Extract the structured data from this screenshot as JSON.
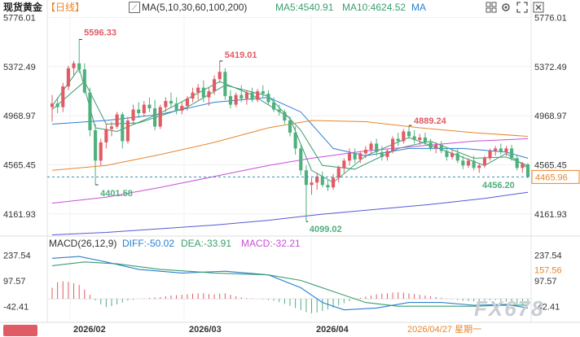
{
  "header": {
    "instrument": "现货黄金",
    "period": "【日线】",
    "ma_label": "MA(5,10,30,60,100,200)",
    "ma5_label": "MA5:4540.91",
    "ma10_label": "MA10:4624.52",
    "ma_tail": "MA"
  },
  "macd_header": {
    "label": "MACD(26,12,9)",
    "diff": "DIFF:-50.02",
    "dea": "DEA:-33.91",
    "macd": "MACD:-32.21"
  },
  "price_axis": {
    "ticks": [
      "5776.01",
      "5372.49",
      "4968.97",
      "4565.45",
      "4161.93"
    ],
    "tick_values": [
      5776.01,
      5372.49,
      4968.97,
      4565.45,
      4161.93
    ],
    "current_label": "4465.96",
    "current_value": 4465.96
  },
  "macd_axis": {
    "ticks": [
      "237.54",
      "97.57",
      "-42.41"
    ],
    "tick_values": [
      237.54,
      97.57,
      -42.41
    ],
    "highlight_label": "157.56",
    "highlight_value": 157.56
  },
  "date_axis": {
    "labels": [
      "2026/02",
      "2026/03",
      "2026/04"
    ],
    "cursor_label": "2026/04/27 星期一"
  },
  "annotations": {
    "high1": "5596.33",
    "high2": "5419.01",
    "mid_high": "4889.24",
    "low1": "4401.58",
    "low2": "4099.02",
    "last_low": "4456.20"
  },
  "watermark": "FX678",
  "colors": {
    "up": "#e15b64",
    "down": "#4fb07e",
    "ma5": "#3a9e6f",
    "ma10": "#3a9e6f",
    "ma30": "#2a7fd0",
    "ma60": "#e8852b",
    "ma100": "#c84fd8",
    "ma200": "#5757d6",
    "diff": "#2a7fd0",
    "dea": "#3a9e6f"
  },
  "chart_data": {
    "type": "candlestick",
    "y_range": [
      3980,
      5800
    ],
    "candles": [
      [
        5040,
        5140,
        4920,
        5070
      ],
      [
        5070,
        5120,
        4990,
        5040
      ],
      [
        5040,
        5240,
        5000,
        5210
      ],
      [
        5210,
        5380,
        5180,
        5360
      ],
      [
        5360,
        5420,
        5300,
        5400
      ],
      [
        5400,
        5596.33,
        5320,
        5350
      ],
      [
        5350,
        5400,
        5150,
        5160
      ],
      [
        5160,
        5200,
        4800,
        4850
      ],
      [
        4850,
        4900,
        4401.58,
        4600
      ],
      [
        4600,
        4780,
        4560,
        4750
      ],
      [
        4750,
        4900,
        4700,
        4860
      ],
      [
        4860,
        4920,
        4800,
        4880
      ],
      [
        4880,
        5000,
        4860,
        4980
      ],
      [
        4980,
        5000,
        4700,
        4760
      ],
      [
        4760,
        4960,
        4740,
        4930
      ],
      [
        4930,
        5060,
        4900,
        5020
      ],
      [
        5020,
        5080,
        4950,
        4990
      ],
      [
        4990,
        5090,
        4960,
        5060
      ],
      [
        5060,
        5120,
        5000,
        5030
      ],
      [
        5030,
        5100,
        4850,
        4880
      ],
      [
        4880,
        5060,
        4860,
        5040
      ],
      [
        5040,
        5120,
        5000,
        5090
      ],
      [
        5090,
        5160,
        5040,
        5070
      ],
      [
        5070,
        5120,
        4980,
        5010
      ],
      [
        5010,
        5080,
        4980,
        5050
      ],
      [
        5050,
        5130,
        5010,
        5110
      ],
      [
        5110,
        5200,
        5080,
        5160
      ],
      [
        5160,
        5230,
        5100,
        5200
      ],
      [
        5200,
        5260,
        5080,
        5120
      ],
      [
        5120,
        5200,
        5050,
        5170
      ],
      [
        5170,
        5300,
        5140,
        5270
      ],
      [
        5270,
        5419.01,
        5240,
        5330
      ],
      [
        5330,
        5360,
        5100,
        5130
      ],
      [
        5130,
        5180,
        5030,
        5060
      ],
      [
        5060,
        5160,
        5040,
        5140
      ],
      [
        5140,
        5220,
        5080,
        5110
      ],
      [
        5110,
        5180,
        5060,
        5160
      ],
      [
        5160,
        5200,
        5080,
        5100
      ],
      [
        5100,
        5190,
        5080,
        5170
      ],
      [
        5170,
        5220,
        5120,
        5150
      ],
      [
        5150,
        5180,
        5060,
        5080
      ],
      [
        5080,
        5120,
        5000,
        5020
      ],
      [
        5020,
        5060,
        4970,
        5000
      ],
      [
        5000,
        5020,
        4900,
        4930
      ],
      [
        4930,
        4960,
        4800,
        4830
      ],
      [
        4830,
        4880,
        4650,
        4700
      ],
      [
        4700,
        4740,
        4480,
        4520
      ],
      [
        4520,
        4560,
        4099.02,
        4400
      ],
      [
        4400,
        4460,
        4320,
        4420
      ],
      [
        4420,
        4500,
        4360,
        4470
      ],
      [
        4470,
        4510,
        4380,
        4400
      ],
      [
        4400,
        4440,
        4350,
        4380
      ],
      [
        4380,
        4490,
        4360,
        4460
      ],
      [
        4460,
        4560,
        4420,
        4540
      ],
      [
        4540,
        4620,
        4500,
        4600
      ],
      [
        4600,
        4700,
        4560,
        4660
      ],
      [
        4660,
        4700,
        4580,
        4610
      ],
      [
        4610,
        4680,
        4580,
        4660
      ],
      [
        4660,
        4720,
        4620,
        4690
      ],
      [
        4690,
        4760,
        4660,
        4740
      ],
      [
        4740,
        4780,
        4640,
        4670
      ],
      [
        4670,
        4720,
        4600,
        4630
      ],
      [
        4630,
        4700,
        4600,
        4680
      ],
      [
        4680,
        4800,
        4660,
        4780
      ],
      [
        4780,
        4830,
        4720,
        4760
      ],
      [
        4760,
        4860,
        4740,
        4840
      ],
      [
        4840,
        4889.24,
        4780,
        4800
      ],
      [
        4800,
        4850,
        4740,
        4770
      ],
      [
        4770,
        4820,
        4730,
        4790
      ],
      [
        4790,
        4830,
        4730,
        4750
      ],
      [
        4750,
        4780,
        4680,
        4700
      ],
      [
        4700,
        4750,
        4660,
        4730
      ],
      [
        4730,
        4760,
        4660,
        4680
      ],
      [
        4680,
        4710,
        4600,
        4630
      ],
      [
        4630,
        4690,
        4610,
        4660
      ],
      [
        4660,
        4700,
        4580,
        4600
      ],
      [
        4600,
        4640,
        4530,
        4560
      ],
      [
        4560,
        4620,
        4540,
        4600
      ],
      [
        4600,
        4640,
        4520,
        4540
      ],
      [
        4540,
        4580,
        4500,
        4560
      ],
      [
        4560,
        4640,
        4540,
        4620
      ],
      [
        4620,
        4700,
        4600,
        4680
      ],
      [
        4680,
        4720,
        4640,
        4700
      ],
      [
        4700,
        4740,
        4650,
        4670
      ],
      [
        4670,
        4720,
        4640,
        4700
      ],
      [
        4700,
        4730,
        4600,
        4620
      ],
      [
        4620,
        4650,
        4520,
        4540
      ],
      [
        4540,
        4590,
        4500,
        4570
      ],
      [
        4570,
        4580,
        4456.2,
        4466
      ]
    ],
    "ma_lines": {
      "ma5": [
        [
          0,
          5050
        ],
        [
          5,
          5360
        ],
        [
          8,
          4870
        ],
        [
          12,
          4840
        ],
        [
          20,
          4990
        ],
        [
          31,
          5250
        ],
        [
          37,
          5140
        ],
        [
          44,
          4950
        ],
        [
          48,
          4520
        ],
        [
          52,
          4420
        ],
        [
          58,
          4640
        ],
        [
          66,
          4790
        ],
        [
          74,
          4660
        ],
        [
          80,
          4560
        ],
        [
          84,
          4660
        ],
        [
          88,
          4540
        ]
      ],
      "ma10": [
        [
          0,
          5020
        ],
        [
          6,
          5250
        ],
        [
          10,
          4900
        ],
        [
          16,
          4910
        ],
        [
          25,
          5040
        ],
        [
          32,
          5220
        ],
        [
          40,
          5130
        ],
        [
          46,
          4850
        ],
        [
          50,
          4560
        ],
        [
          56,
          4530
        ],
        [
          64,
          4700
        ],
        [
          70,
          4760
        ],
        [
          78,
          4620
        ],
        [
          84,
          4630
        ],
        [
          88,
          4560
        ]
      ],
      "ma30": [
        [
          0,
          4900
        ],
        [
          10,
          4930
        ],
        [
          20,
          4980
        ],
        [
          30,
          5080
        ],
        [
          40,
          5120
        ],
        [
          46,
          5000
        ],
        [
          52,
          4700
        ],
        [
          58,
          4640
        ],
        [
          66,
          4700
        ],
        [
          76,
          4700
        ],
        [
          84,
          4670
        ],
        [
          88,
          4620
        ]
      ],
      "ma60": [
        [
          0,
          4520
        ],
        [
          10,
          4560
        ],
        [
          20,
          4650
        ],
        [
          30,
          4750
        ],
        [
          40,
          4870
        ],
        [
          48,
          4930
        ],
        [
          58,
          4920
        ],
        [
          68,
          4870
        ],
        [
          78,
          4830
        ],
        [
          88,
          4800
        ]
      ],
      "ma100": [
        [
          0,
          4250
        ],
        [
          10,
          4300
        ],
        [
          20,
          4380
        ],
        [
          30,
          4470
        ],
        [
          40,
          4560
        ],
        [
          48,
          4620
        ],
        [
          58,
          4680
        ],
        [
          68,
          4720
        ],
        [
          78,
          4760
        ],
        [
          88,
          4780
        ]
      ],
      "ma200": [
        [
          0,
          3990
        ],
        [
          10,
          4010
        ],
        [
          20,
          4040
        ],
        [
          30,
          4070
        ],
        [
          40,
          4110
        ],
        [
          50,
          4160
        ],
        [
          60,
          4200
        ],
        [
          70,
          4240
        ],
        [
          80,
          4290
        ],
        [
          88,
          4340
        ]
      ]
    },
    "macd": {
      "y_range": [
        -110,
        270
      ],
      "bars": [
        60,
        90,
        95,
        92,
        85,
        75,
        50,
        22,
        -8,
        -30,
        -45,
        -40,
        -30,
        -20,
        -10,
        -5,
        0,
        2,
        5,
        8,
        10,
        14,
        18,
        20,
        22,
        25,
        28,
        30,
        30,
        26,
        24,
        28,
        30,
        22,
        14,
        8,
        4,
        2,
        0,
        -3,
        -6,
        -10,
        -18,
        -28,
        -38,
        -50,
        -62,
        -72,
        -78,
        -74,
        -66,
        -58,
        -48,
        -36,
        -24,
        -12,
        -2,
        6,
        12,
        18,
        24,
        28,
        30,
        34,
        36,
        34,
        30,
        26,
        22,
        18,
        14,
        10,
        6,
        2,
        -2,
        -6,
        -10,
        -12,
        -14,
        -12,
        -10,
        -8,
        -6,
        -10,
        -16,
        -22,
        -28,
        -32,
        -32
      ],
      "diff": [
        [
          0,
          220
        ],
        [
          5,
          230
        ],
        [
          10,
          200
        ],
        [
          16,
          160
        ],
        [
          24,
          140
        ],
        [
          32,
          150
        ],
        [
          40,
          130
        ],
        [
          46,
          60
        ],
        [
          50,
          -20
        ],
        [
          54,
          -60
        ],
        [
          60,
          -50
        ],
        [
          66,
          -20
        ],
        [
          72,
          -20
        ],
        [
          78,
          -35
        ],
        [
          84,
          -30
        ],
        [
          88,
          -50
        ]
      ],
      "dea": [
        [
          0,
          180
        ],
        [
          6,
          200
        ],
        [
          12,
          190
        ],
        [
          20,
          160
        ],
        [
          30,
          140
        ],
        [
          40,
          130
        ],
        [
          46,
          100
        ],
        [
          52,
          40
        ],
        [
          58,
          -20
        ],
        [
          64,
          -40
        ],
        [
          70,
          -40
        ],
        [
          78,
          -40
        ],
        [
          84,
          -35
        ],
        [
          88,
          -34
        ]
      ]
    }
  }
}
